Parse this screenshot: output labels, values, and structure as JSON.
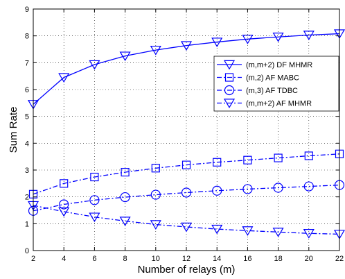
{
  "chart_data": {
    "type": "line",
    "xlabel": "Number of relays (m)",
    "ylabel": "Sum Rate",
    "xlim": [
      2,
      22
    ],
    "ylim": [
      0,
      9
    ],
    "x_ticks": [
      2,
      4,
      6,
      8,
      10,
      12,
      14,
      16,
      18,
      20,
      22
    ],
    "y_ticks": [
      0,
      1,
      2,
      3,
      4,
      5,
      6,
      7,
      8,
      9
    ],
    "grid": true,
    "legend_position": "top-right",
    "color": "#0000ff",
    "x": [
      2,
      4,
      6,
      8,
      10,
      12,
      14,
      16,
      18,
      20,
      22
    ],
    "series": [
      {
        "name": "(m,m+2) DF MHMR",
        "line_style": "solid",
        "marker": "triangle-down",
        "values": [
          5.45,
          6.45,
          6.93,
          7.25,
          7.47,
          7.64,
          7.77,
          7.88,
          7.96,
          8.03,
          8.08
        ]
      },
      {
        "name": "(m,2) AF MABC",
        "line_style": "dash-dot",
        "marker": "square",
        "values": [
          2.1,
          2.5,
          2.74,
          2.92,
          3.07,
          3.19,
          3.29,
          3.37,
          3.45,
          3.53,
          3.6
        ]
      },
      {
        "name": "(m,3) AF TDBC",
        "line_style": "dash-dot",
        "marker": "circle",
        "values": [
          1.48,
          1.72,
          1.88,
          1.99,
          2.08,
          2.16,
          2.23,
          2.29,
          2.34,
          2.39,
          2.44
        ]
      },
      {
        "name": "(m,m+2) AF MHMR",
        "line_style": "dash-dot",
        "marker": "triangle-down",
        "values": [
          1.68,
          1.45,
          1.25,
          1.1,
          0.97,
          0.88,
          0.8,
          0.74,
          0.69,
          0.64,
          0.61
        ]
      }
    ]
  }
}
